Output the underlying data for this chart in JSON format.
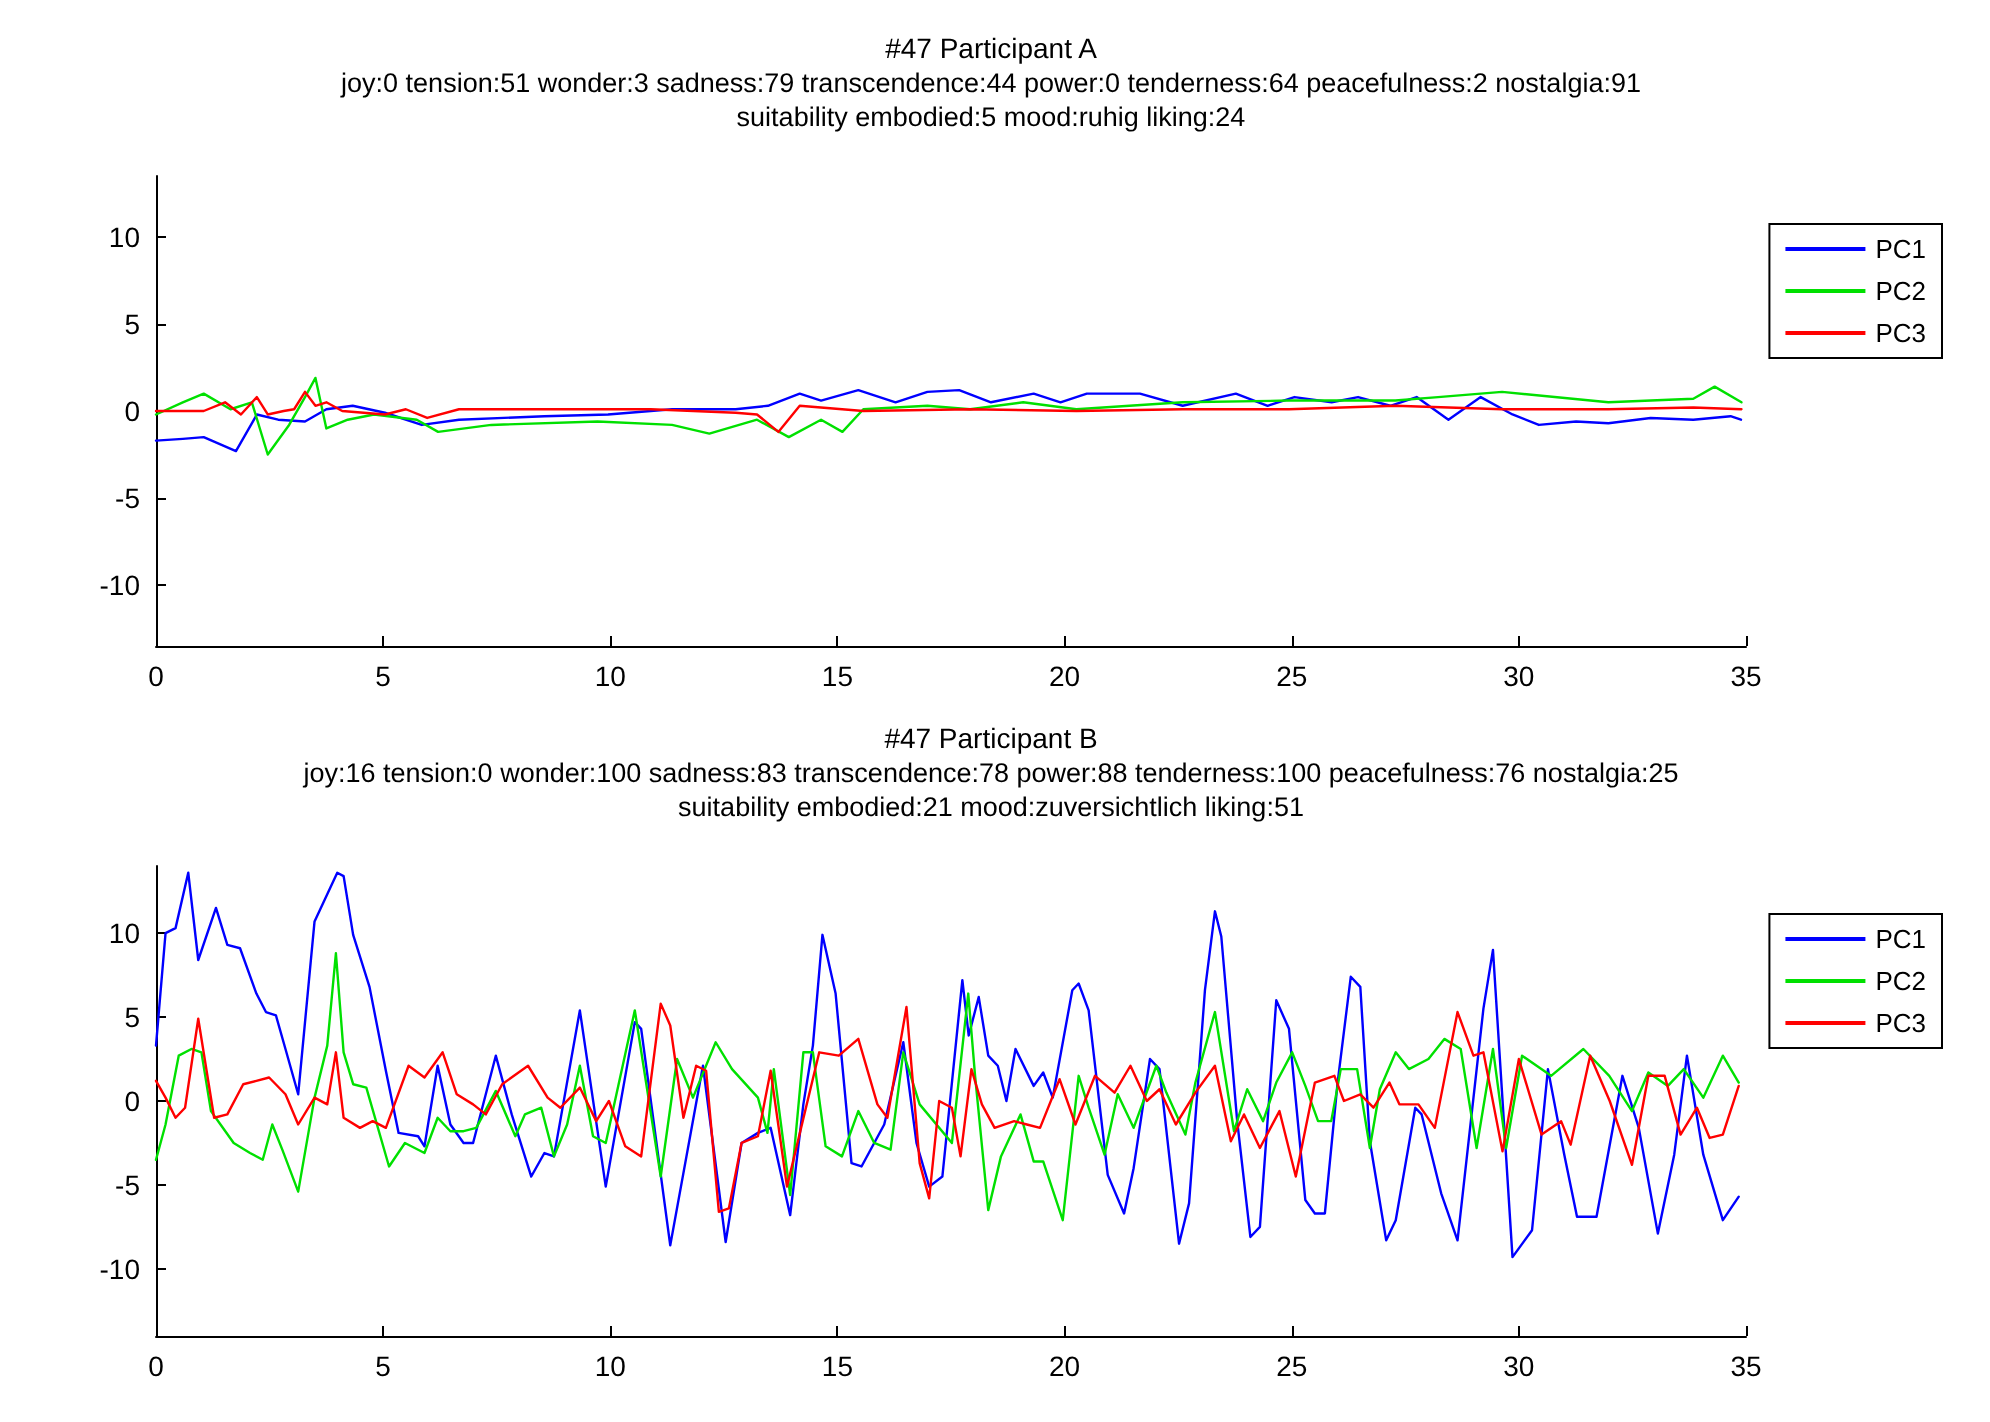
{
  "chart_data": [
    {
      "type": "line",
      "title": "#47 Participant A",
      "subtitle": "joy:0 tension:51 wonder:3 sadness:79 transcendence:44 power:0 tenderness:64 peacefulness:2 nostalgia:91\nsuitability embodied:5 mood:ruhig liking:24",
      "xlim": [
        0,
        35
      ],
      "xticks": [
        0,
        5,
        10,
        15,
        20,
        25,
        30,
        35
      ],
      "ylim": [
        -13.5,
        13.5
      ],
      "yticks": [
        -10,
        -5,
        0,
        5,
        10
      ],
      "grid": false,
      "legend": "top right",
      "marker": "none",
      "line_style": "solid",
      "series": [
        {
          "name": "PC1",
          "color": "#0000ff",
          "x": [
            0,
            0.59,
            1.05,
            1.76,
            2.22,
            2.69,
            3.28,
            3.75,
            4.33,
            5.04,
            5.85,
            6.67,
            8.55,
            9.95,
            11.36,
            12.76,
            13.47,
            14.17,
            14.64,
            15.46,
            16.28,
            16.98,
            17.68,
            18.38,
            19.32,
            19.91,
            20.49,
            21.66,
            22.6,
            23.77,
            24.47,
            25.06,
            25.88,
            26.46,
            27.17,
            27.75,
            28.45,
            29.16,
            29.86,
            30.44,
            31.26,
            31.97,
            32.9,
            33.84,
            34.66,
            34.89
          ],
          "values": [
            -1.7,
            -1.6,
            -1.5,
            -2.3,
            -0.2,
            -0.5,
            -0.6,
            0.1,
            0.3,
            -0.1,
            -0.8,
            -0.5,
            -0.3,
            -0.2,
            0.1,
            0.1,
            0.3,
            1.0,
            0.6,
            1.2,
            0.5,
            1.1,
            1.2,
            0.5,
            1.0,
            0.5,
            1.0,
            1.0,
            0.3,
            1.0,
            0.3,
            0.8,
            0.5,
            0.8,
            0.3,
            0.8,
            -0.5,
            0.8,
            -0.2,
            -0.8,
            -0.6,
            -0.7,
            -0.4,
            -0.5,
            -0.3,
            -0.5
          ]
        },
        {
          "name": "PC2",
          "color": "#00e000",
          "x": [
            0,
            0.59,
            1.05,
            1.64,
            2.11,
            2.46,
            2.93,
            3.28,
            3.51,
            3.75,
            4.22,
            4.8,
            5.74,
            6.21,
            7.38,
            9.72,
            11.36,
            12.18,
            13.23,
            13.93,
            14.64,
            15.11,
            15.57,
            16.98,
            17.92,
            19.09,
            20.26,
            22.6,
            24.94,
            27.28,
            28.22,
            29.63,
            31.97,
            33.84,
            34.31,
            34.9
          ],
          "values": [
            -0.2,
            0.5,
            1.0,
            0.1,
            0.5,
            -2.5,
            -0.8,
            0.8,
            1.9,
            -1.0,
            -0.5,
            -0.2,
            -0.5,
            -1.2,
            -0.8,
            -0.6,
            -0.8,
            -1.3,
            -0.5,
            -1.5,
            -0.5,
            -1.2,
            0.1,
            0.3,
            0.1,
            0.5,
            0.1,
            0.5,
            0.6,
            0.6,
            0.8,
            1.1,
            0.5,
            0.7,
            1.4,
            0.5
          ]
        },
        {
          "name": "PC3",
          "color": "#ff0000",
          "x": [
            0,
            1.05,
            1.52,
            1.87,
            2.22,
            2.46,
            2.81,
            3.04,
            3.28,
            3.51,
            3.75,
            4.1,
            5.04,
            5.5,
            5.97,
            6.67,
            8.55,
            10.89,
            12.76,
            13.23,
            13.7,
            14.17,
            15.57,
            17.92,
            20.26,
            22.6,
            24.94,
            27.28,
            29.63,
            31.97,
            33.84,
            34.9
          ],
          "values": [
            0,
            0,
            0.5,
            -0.2,
            0.8,
            -0.2,
            0,
            0.1,
            1.1,
            0.3,
            0.5,
            0,
            -0.2,
            0.1,
            -0.4,
            0.1,
            0.1,
            0.1,
            -0.1,
            -0.2,
            -1.2,
            0.3,
            0,
            0.1,
            0,
            0.1,
            0.1,
            0.3,
            0.1,
            0.1,
            0.2,
            0.1
          ]
        }
      ]
    },
    {
      "type": "line",
      "title": "#47 Participant B",
      "subtitle": "joy:16 tension:0 wonder:100 sadness:83 transcendence:78 power:88 tenderness:100 peacefulness:76 nostalgia:25\nsuitability embodied:21 mood:zuversichtlich liking:51",
      "xlim": [
        0,
        35
      ],
      "xticks": [
        0,
        5,
        10,
        15,
        20,
        25,
        30,
        35
      ],
      "ylim": [
        -14,
        14
      ],
      "yticks": [
        -10,
        -5,
        0,
        5,
        10
      ],
      "grid": false,
      "legend": "top right",
      "marker": "none",
      "line_style": "solid",
      "series": [
        {
          "name": "PC1",
          "color": "#0000ff",
          "x": [
            0,
            0.21,
            0.43,
            0.71,
            0.93,
            1.32,
            1.57,
            1.85,
            2.21,
            2.42,
            2.64,
            2.85,
            3.13,
            3.49,
            3.99,
            4.13,
            4.34,
            4.7,
            5.06,
            5.34,
            5.77,
            5.91,
            6.2,
            6.48,
            6.77,
            6.98,
            7.48,
            7.83,
            8.26,
            8.55,
            8.76,
            9.33,
            9.9,
            10.54,
            10.68,
            11.32,
            12.04,
            12.54,
            12.89,
            13.25,
            13.53,
            13.96,
            14.25,
            14.46,
            14.67,
            14.96,
            15.31,
            15.53,
            16.03,
            16.45,
            16.74,
            17.02,
            17.31,
            17.75,
            17.89,
            18.11,
            18.32,
            18.53,
            18.72,
            18.92,
            19.32,
            19.53,
            19.74,
            20.17,
            20.31,
            20.53,
            20.95,
            21.31,
            21.52,
            21.88,
            22.09,
            22.52,
            22.74,
            23.09,
            23.31,
            23.45,
            23.8,
            24.09,
            24.3,
            24.66,
            24.94,
            25.3,
            25.51,
            25.73,
            26.01,
            26.3,
            26.51,
            26.72,
            27.08,
            27.29,
            27.72,
            27.86,
            28.29,
            28.65,
            29.22,
            29.43,
            29.86,
            30.29,
            30.64,
            31.0,
            31.28,
            31.71,
            32.28,
            32.64,
            33.06,
            33.42,
            33.7,
            34.06,
            34.49,
            34.84
          ],
          "values": [
            3.3,
            10.0,
            10.3,
            13.6,
            8.4,
            11.5,
            9.3,
            9.1,
            6.4,
            5.3,
            5.1,
            3.1,
            0.4,
            10.7,
            13.6,
            13.4,
            9.9,
            6.8,
            1.8,
            -1.9,
            -2.1,
            -2.7,
            2.1,
            -1.4,
            -2.5,
            -2.5,
            2.7,
            -0.8,
            -4.5,
            -3.1,
            -3.3,
            5.4,
            -5.1,
            4.7,
            4.3,
            -8.6,
            2.1,
            -8.4,
            -2.5,
            -1.9,
            -1.6,
            -6.8,
            -0.2,
            3.3,
            9.9,
            6.4,
            -3.7,
            -3.9,
            -1.4,
            3.5,
            -2.5,
            -5.1,
            -4.5,
            7.2,
            3.9,
            6.2,
            2.7,
            2.1,
            0,
            3.1,
            0.9,
            1.7,
            0.2,
            6.6,
            7.0,
            5.4,
            -4.4,
            -6.7,
            -4.0,
            2.5,
            1.9,
            -8.5,
            -6.1,
            6.6,
            11.3,
            9.8,
            -1.2,
            -8.1,
            -7.5,
            6.0,
            4.3,
            -5.9,
            -6.7,
            -6.7,
            1.1,
            7.4,
            6.8,
            -2.4,
            -8.3,
            -7.1,
            -0.4,
            -0.8,
            -5.5,
            -8.3,
            5.5,
            9.0,
            -9.3,
            -7.7,
            1.9,
            -3.2,
            -6.9,
            -6.9,
            1.5,
            -1.6,
            -7.9,
            -3.2,
            2.7,
            -3.2,
            -7.1,
            -5.7
          ]
        },
        {
          "name": "PC2",
          "color": "#00e000",
          "x": [
            0,
            0.21,
            0.5,
            0.78,
            1.0,
            1.21,
            1.42,
            1.71,
            2.07,
            2.35,
            2.56,
            2.78,
            3.13,
            3.49,
            3.77,
            3.96,
            4.13,
            4.34,
            4.63,
            5.13,
            5.48,
            5.91,
            6.2,
            6.48,
            6.77,
            7.05,
            7.48,
            7.91,
            8.12,
            8.48,
            8.76,
            9.05,
            9.33,
            9.62,
            9.9,
            10.54,
            11.11,
            11.47,
            11.82,
            12.32,
            12.68,
            13.25,
            13.46,
            13.6,
            13.96,
            14.25,
            14.46,
            14.74,
            15.1,
            15.46,
            15.81,
            16.17,
            16.45,
            16.81,
            17.52,
            17.88,
            18.03,
            18.32,
            18.6,
            19.03,
            19.32,
            19.53,
            19.96,
            20.31,
            20.53,
            20.88,
            21.17,
            21.52,
            22.02,
            22.24,
            22.66,
            22.88,
            23.31,
            23.73,
            24.02,
            24.37,
            24.66,
            25.01,
            25.3,
            25.58,
            25.87,
            26.08,
            26.44,
            26.72,
            26.94,
            27.29,
            27.58,
            28.01,
            28.36,
            28.72,
            29.07,
            29.43,
            29.72,
            30.07,
            30.71,
            31.42,
            31.99,
            32.49,
            32.85,
            33.28,
            33.63,
            34.06,
            34.49,
            34.84
          ],
          "values": [
            -3.5,
            -1.4,
            2.7,
            3.1,
            2.9,
            -0.6,
            -1.4,
            -2.5,
            -3.1,
            -3.5,
            -1.4,
            -2.9,
            -5.4,
            0.2,
            3.3,
            8.8,
            2.9,
            1.0,
            0.8,
            -3.9,
            -2.5,
            -3.1,
            -1.0,
            -1.8,
            -1.8,
            -1.6,
            0.6,
            -2.1,
            -0.8,
            -0.4,
            -3.3,
            -1.4,
            2.1,
            -2.1,
            -2.5,
            5.4,
            -4.5,
            2.5,
            0.2,
            3.5,
            1.9,
            0.2,
            -1.9,
            1.9,
            -5.6,
            2.9,
            2.9,
            -2.7,
            -3.3,
            -0.6,
            -2.5,
            -2.9,
            2.9,
            -0.2,
            -2.5,
            6.4,
            1.5,
            -6.5,
            -3.3,
            -0.8,
            -3.6,
            -3.6,
            -7.1,
            1.5,
            -0.4,
            -3.2,
            0.4,
            -1.6,
            2.1,
            0.5,
            -2.0,
            1.1,
            5.3,
            -1.8,
            0.7,
            -1.2,
            1.1,
            2.9,
            0.9,
            -1.2,
            -1.2,
            1.9,
            1.9,
            -2.8,
            0.7,
            2.9,
            1.9,
            2.5,
            3.7,
            3.1,
            -2.8,
            3.1,
            -2.8,
            2.7,
            1.5,
            3.1,
            1.5,
            -0.6,
            1.7,
            0.9,
            1.9,
            0.2,
            2.7,
            1.1
          ]
        },
        {
          "name": "PC3",
          "color": "#ff0000",
          "x": [
            0,
            0.21,
            0.43,
            0.64,
            0.93,
            1.28,
            1.57,
            1.92,
            2.21,
            2.49,
            2.85,
            3.13,
            3.49,
            3.77,
            3.96,
            4.13,
            4.49,
            4.77,
            5.06,
            5.56,
            5.91,
            6.31,
            6.62,
            6.98,
            7.26,
            7.62,
            8.19,
            8.62,
            8.9,
            9.33,
            9.69,
            9.97,
            10.33,
            10.68,
            11.11,
            11.32,
            11.61,
            11.89,
            12.11,
            12.39,
            12.61,
            12.89,
            13.25,
            13.53,
            13.89,
            14.6,
            15.03,
            15.46,
            15.88,
            16.1,
            16.52,
            16.81,
            17.02,
            17.24,
            17.52,
            17.71,
            17.95,
            18.18,
            18.46,
            18.89,
            19.17,
            19.46,
            19.89,
            20.24,
            20.67,
            21.1,
            21.45,
            21.81,
            22.09,
            22.45,
            22.88,
            23.31,
            23.66,
            23.95,
            24.3,
            24.73,
            25.09,
            25.51,
            25.94,
            26.15,
            26.51,
            26.8,
            27.15,
            27.37,
            27.79,
            28.15,
            28.65,
            29.0,
            29.22,
            29.64,
            30.0,
            30.5,
            30.93,
            31.14,
            31.57,
            32.0,
            32.49,
            32.85,
            33.21,
            33.56,
            33.92,
            34.2,
            34.49,
            34.84
          ],
          "values": [
            1.2,
            0.2,
            -1.0,
            -0.4,
            4.9,
            -1.0,
            -0.8,
            1.0,
            1.2,
            1.4,
            0.4,
            -1.4,
            0.2,
            -0.2,
            2.9,
            -1.0,
            -1.6,
            -1.2,
            -1.6,
            2.1,
            1.4,
            2.9,
            0.4,
            -0.2,
            -0.8,
            1.0,
            2.1,
            0.2,
            -0.4,
            0.8,
            -1.2,
            0,
            -2.7,
            -3.3,
            5.8,
            4.5,
            -1.0,
            2.1,
            1.8,
            -6.6,
            -6.4,
            -2.5,
            -2.1,
            1.8,
            -5.1,
            2.9,
            2.7,
            3.7,
            -0.2,
            -1.0,
            5.6,
            -3.7,
            -5.8,
            0,
            -0.4,
            -3.3,
            1.9,
            -0.2,
            -1.6,
            -1.2,
            -1.4,
            -1.6,
            1.3,
            -1.4,
            1.5,
            0.5,
            2.1,
            0,
            0.7,
            -1.4,
            0.5,
            2.1,
            -2.4,
            -0.8,
            -2.8,
            -0.6,
            -4.5,
            1.1,
            1.5,
            0,
            0.4,
            -0.4,
            1.1,
            -0.2,
            -0.2,
            -1.6,
            5.3,
            2.7,
            2.9,
            -3.0,
            2.5,
            -2.0,
            -1.2,
            -2.6,
            2.7,
            0,
            -3.8,
            1.5,
            1.5,
            -2.0,
            -0.4,
            -2.2,
            -2.0,
            0.9
          ]
        }
      ]
    }
  ]
}
